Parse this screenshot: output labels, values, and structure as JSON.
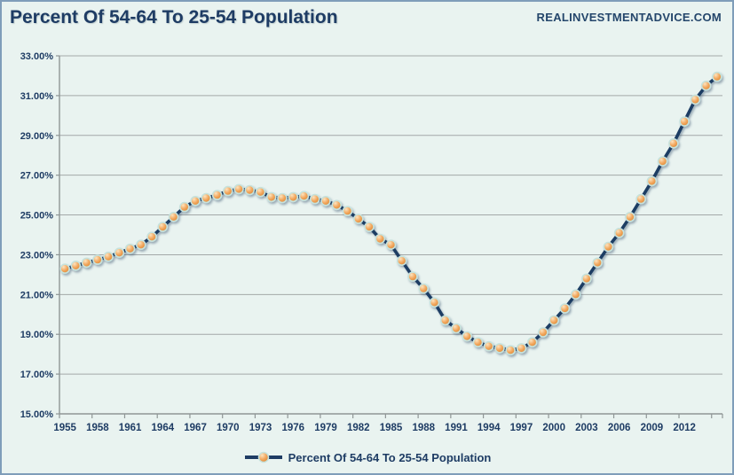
{
  "header": {
    "title": "Percent Of 54-64 To 25-54 Population",
    "watermark": "REALINVESTMENTADVICE.COM"
  },
  "colors": {
    "background": "#e9f3f0",
    "panel_border": "#7f9db9",
    "navy": "#1e3c64",
    "gridline": "#a3a8a8",
    "axis": "#8f9696",
    "marker_fill_highlight": "#fde4c0",
    "marker_fill_mid": "#f2a85f",
    "marker_fill_edge": "#dd8836",
    "marker_ring": "#c6e2dc"
  },
  "chart_data": {
    "type": "line",
    "title": "Percent Of 54-64 To 25-54 Population",
    "legend": "Percent Of 54-64 To 25-54 Population",
    "xlabel": "",
    "ylabel": "",
    "ylim": [
      15,
      33
    ],
    "y_tick_step": 2,
    "y_tick_format": "two-decimal-percent",
    "x_tick_years": [
      1955,
      1958,
      1961,
      1964,
      1967,
      1970,
      1973,
      1976,
      1979,
      1982,
      1985,
      1988,
      1991,
      1994,
      1997,
      2000,
      2003,
      2006,
      2009,
      2012
    ],
    "grid": "horizontal",
    "legend_position": "bottom-center",
    "years": [
      1955,
      1956,
      1957,
      1958,
      1959,
      1960,
      1961,
      1962,
      1963,
      1964,
      1965,
      1966,
      1967,
      1968,
      1969,
      1970,
      1971,
      1972,
      1973,
      1974,
      1975,
      1976,
      1977,
      1978,
      1979,
      1980,
      1981,
      1982,
      1983,
      1984,
      1985,
      1986,
      1987,
      1988,
      1989,
      1990,
      1991,
      1992,
      1993,
      1994,
      1995,
      1996,
      1997,
      1998,
      1999,
      2000,
      2001,
      2002,
      2003,
      2004,
      2005,
      2006,
      2007,
      2008,
      2009,
      2010,
      2011,
      2012,
      2013,
      2014,
      2015
    ],
    "values": [
      22.3,
      22.45,
      22.6,
      22.75,
      22.9,
      23.1,
      23.3,
      23.5,
      23.9,
      24.4,
      24.9,
      25.4,
      25.7,
      25.85,
      26.0,
      26.2,
      26.3,
      26.25,
      26.15,
      25.9,
      25.85,
      25.9,
      25.95,
      25.8,
      25.7,
      25.5,
      25.2,
      24.8,
      24.4,
      23.8,
      23.5,
      22.7,
      21.9,
      21.3,
      20.6,
      19.7,
      19.3,
      18.9,
      18.6,
      18.4,
      18.3,
      18.2,
      18.3,
      18.6,
      19.1,
      19.7,
      20.3,
      21.0,
      21.8,
      22.6,
      23.4,
      24.1,
      24.9,
      25.8,
      26.7,
      27.7,
      28.6,
      29.7,
      30.8,
      31.5,
      31.95
    ]
  }
}
